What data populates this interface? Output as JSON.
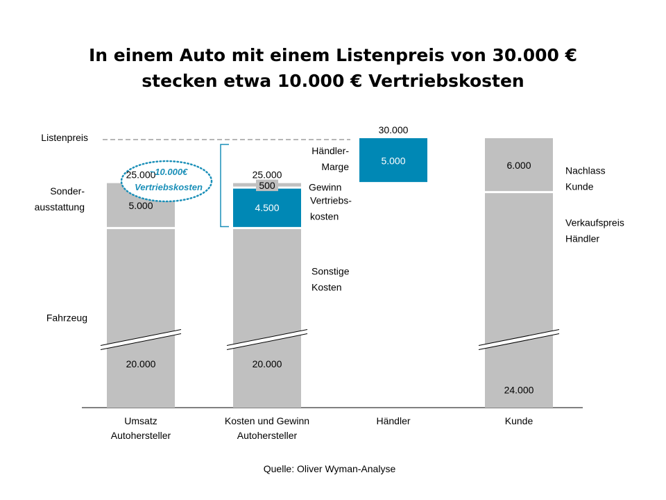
{
  "title_lines": [
    "In einem Auto mit einem Listenpreis von 30.000 €",
    "stecken etwa 10.000 € Vertriebskosten"
  ],
  "source": "Quelle: Oliver Wyman-Analyse",
  "colors": {
    "grey": "#c0c0c0",
    "blue": "#0088b5",
    "bracket": "#1a8fb8"
  },
  "chart_data": {
    "type": "bar",
    "subtype": "stacked-waterfall",
    "ylim": [
      0,
      30000
    ],
    "listenpreis_label": "Listenpreis",
    "callout": {
      "line1": "~10.000€",
      "line2": "Vertriebskosten"
    },
    "categories": [
      {
        "key": "umsatz",
        "lines": [
          "Umsatz",
          "Autohersteller"
        ]
      },
      {
        "key": "kosten",
        "lines": [
          "Kosten und Gewinn",
          "Autohersteller"
        ]
      },
      {
        "key": "haendler",
        "lines": [
          "Händler"
        ]
      },
      {
        "key": "kunde",
        "lines": [
          "Kunde"
        ]
      }
    ],
    "segments": [
      {
        "cat": 0,
        "from": 0,
        "to": 20000,
        "color": "grey",
        "value_label": "20.000"
      },
      {
        "cat": 0,
        "from": 20000,
        "to": 25000,
        "color": "grey",
        "value_label": "5.000"
      },
      {
        "cat": 1,
        "from": 0,
        "to": 20000,
        "color": "grey",
        "value_label": "20.000"
      },
      {
        "cat": 1,
        "from": 20000,
        "to": 24500,
        "color": "blue",
        "value_label": "4.500"
      },
      {
        "cat": 1,
        "from": 24500,
        "to": 25000,
        "color": "grey",
        "value_label": "500"
      },
      {
        "cat": 2,
        "from": 25000,
        "to": 30000,
        "color": "blue",
        "value_label": "5.000"
      },
      {
        "cat": 3,
        "from": 0,
        "to": 24000,
        "color": "grey",
        "value_label": "24.000"
      },
      {
        "cat": 3,
        "from": 24000,
        "to": 30000,
        "color": "grey",
        "value_label": "6.000"
      }
    ],
    "totals": [
      {
        "cat": 0,
        "value": 25000,
        "label": "25.000"
      },
      {
        "cat": 1,
        "value": 25000,
        "label": "25.000"
      },
      {
        "cat": 2,
        "value": 30000,
        "label": "30.000"
      }
    ],
    "left_labels": [
      {
        "lines": [
          "Fahrzeug"
        ],
        "at": 10000
      },
      {
        "lines": [
          "Sonder-",
          "ausstattung"
        ],
        "at": 22500
      }
    ],
    "right_labels": [
      {
        "cat": 1,
        "lines": [
          "Gewinn"
        ]
      },
      {
        "cat": 1,
        "lines": [
          "Vertriebs-",
          "kosten"
        ]
      },
      {
        "cat": 1,
        "lines": [
          "Sonstige",
          "Kosten"
        ]
      },
      {
        "cat": 2,
        "lines": [
          "Händler-",
          "Marge"
        ]
      },
      {
        "cat": 3,
        "lines": [
          "Nachlass",
          "Kunde"
        ]
      },
      {
        "cat": 3,
        "lines": [
          "Verkaufspreis",
          "Händler"
        ]
      }
    ]
  }
}
